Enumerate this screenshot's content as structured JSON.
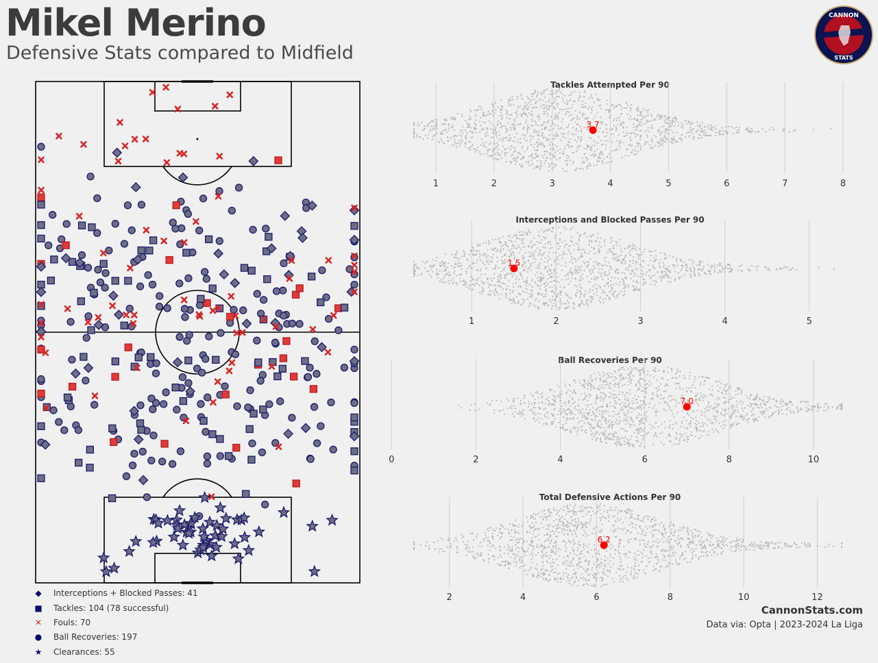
{
  "header": {
    "title": "Mikel Merino",
    "subtitle": "Defensive Stats compared to Midfield",
    "logo_top": "CANNON",
    "logo_bottom": "STATS"
  },
  "legend": [
    {
      "symbol": "◆",
      "label": "Interceptions + Blocked Passes: 41"
    },
    {
      "symbol": "■",
      "label": "Tackles: 104 (78 successful)"
    },
    {
      "symbol": "✕",
      "label": "Fouls: 70",
      "color": "#d62728"
    },
    {
      "symbol": "●",
      "label": "Ball Recoveries: 197"
    },
    {
      "symbol": "★",
      "label": "Clearances: 55"
    }
  ],
  "footer": {
    "brand": "CannonStats.com",
    "source": "Data via: Opta | 2023-2024 La Liga"
  },
  "colors": {
    "marker_fill": "#6e6e86",
    "marker_edge": "#1a1a6e",
    "foul_red": "#d62728",
    "highlight": "#ff0000",
    "swarm_gray": "#b9b9b9"
  },
  "chart_data": [
    {
      "type": "scatter",
      "title": "",
      "pitch": "vertical",
      "series": [
        {
          "name": "Interceptions + Blocked Passes",
          "count": 41
        },
        {
          "name": "Tackles",
          "count": 104
        },
        {
          "name": "Fouls",
          "count": 70
        },
        {
          "name": "Ball Recoveries",
          "count": 197
        },
        {
          "name": "Clearances",
          "count": 55
        }
      ]
    },
    {
      "type": "scatter",
      "title": "Tackles Attempted Per 90",
      "xlim": [
        0.6,
        8.0
      ],
      "ticks": [
        1,
        2,
        3,
        4,
        5,
        6,
        7,
        8
      ],
      "distribution_center": 3.1,
      "player_value": 3.7,
      "player_label": "3.7"
    },
    {
      "type": "scatter",
      "title": "Interceptions and Blocked Passes Per 90",
      "xlim": [
        0.3,
        5.4
      ],
      "ticks": [
        1,
        2,
        3,
        4,
        5
      ],
      "distribution_center": 2.0,
      "player_value": 1.5,
      "player_label": "1.5"
    },
    {
      "type": "scatter",
      "title": "Ball Recoveries Per 90",
      "xlim": [
        0.5,
        10.7
      ],
      "ticks": [
        0,
        2,
        4,
        6,
        8,
        10
      ],
      "distribution_center": 6.0,
      "player_value": 7.0,
      "player_label": "7.0"
    },
    {
      "type": "scatter",
      "title": "Total Defensive Actions Per 90",
      "xlim": [
        1.0,
        12.7
      ],
      "ticks": [
        2,
        4,
        6,
        8,
        10,
        12
      ],
      "distribution_center": 5.8,
      "player_value": 6.2,
      "player_label": "6.2"
    }
  ]
}
